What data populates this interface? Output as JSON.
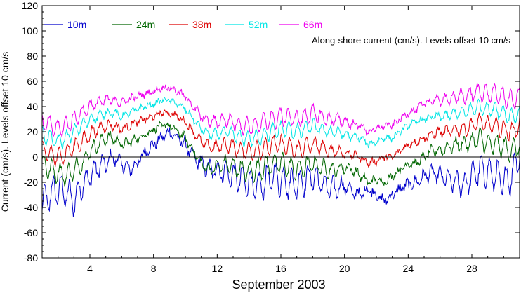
{
  "chart_data": {
    "type": "line",
    "title": "",
    "xlabel": "September 2003",
    "ylabel": "Current (cm/s). Levels offset 10 cm/s",
    "annotation": "Along-shore current (cm/s). Levels offset 10 cm/s",
    "xlim": [
      1,
      31
    ],
    "ylim": [
      -80,
      120
    ],
    "x_ticks": [
      4,
      8,
      12,
      16,
      20,
      24,
      28
    ],
    "y_ticks": [
      -80,
      -60,
      -40,
      -20,
      0,
      20,
      40,
      60,
      80,
      100,
      120
    ],
    "zero_line": true,
    "grid": false,
    "legend_position": "top",
    "series": [
      {
        "name": "10m",
        "color": "#0000cc",
        "offset": 0,
        "x": [
          1,
          1.5,
          2,
          2.5,
          3,
          3.5,
          4,
          4.5,
          5,
          5.5,
          6,
          6.5,
          7,
          7.5,
          8,
          8.5,
          9,
          9.5,
          10,
          10.5,
          11,
          11.5,
          12,
          12.5,
          13,
          13.5,
          14,
          14.5,
          15,
          15.5,
          16,
          16.5,
          17,
          17.5,
          18,
          18.5,
          19,
          19.5,
          20,
          20.5,
          21,
          21.5,
          22,
          22.5,
          23,
          23.5,
          24,
          24.5,
          25,
          25.5,
          26,
          26.5,
          27,
          27.5,
          28,
          28.5,
          29,
          29.5,
          30,
          30.5,
          31
        ],
        "y": [
          -38,
          -30,
          -25,
          -28,
          -35,
          -22,
          -15,
          -8,
          -5,
          0,
          -5,
          -10,
          -5,
          5,
          10,
          15,
          20,
          15,
          10,
          0,
          -5,
          -10,
          -10,
          -12,
          -15,
          -18,
          -20,
          -25,
          -20,
          -15,
          -18,
          -20,
          -22,
          -18,
          -15,
          -20,
          -25,
          -25,
          -22,
          -28,
          -30,
          -25,
          -30,
          -35,
          -30,
          -25,
          -22,
          -20,
          -15,
          -12,
          -15,
          -18,
          -20,
          -22,
          -15,
          -10,
          -12,
          -15,
          -20,
          -15,
          5
        ]
      },
      {
        "name": "24m",
        "color": "#006600",
        "offset": 10,
        "x": [
          1,
          1.5,
          2,
          2.5,
          3,
          3.5,
          4,
          4.5,
          5,
          5.5,
          6,
          6.5,
          7,
          7.5,
          8,
          8.5,
          9,
          9.5,
          10,
          10.5,
          11,
          11.5,
          12,
          12.5,
          13,
          13.5,
          14,
          14.5,
          15,
          15.5,
          16,
          16.5,
          17,
          17.5,
          18,
          18.5,
          19,
          19.5,
          20,
          20.5,
          21,
          21.5,
          22,
          22.5,
          23,
          23.5,
          24,
          24.5,
          25,
          25.5,
          26,
          26.5,
          27,
          27.5,
          28,
          28.5,
          29,
          29.5,
          30,
          30.5,
          31
        ],
        "y": [
          -5,
          -10,
          -12,
          -15,
          -10,
          -5,
          5,
          10,
          15,
          15,
          10,
          12,
          15,
          18,
          22,
          25,
          25,
          20,
          15,
          5,
          -5,
          -10,
          -8,
          -5,
          -8,
          -10,
          -12,
          -10,
          -8,
          -5,
          -5,
          -8,
          -10,
          -8,
          -5,
          -8,
          -10,
          -10,
          -8,
          -10,
          -15,
          -20,
          -18,
          -20,
          -15,
          -10,
          -5,
          -5,
          0,
          5,
          5,
          8,
          10,
          10,
          12,
          15,
          10,
          10,
          8,
          5,
          10
        ]
      },
      {
        "name": "38m",
        "color": "#dd0000",
        "offset": 20,
        "x": [
          1,
          1.5,
          2,
          2.5,
          3,
          3.5,
          4,
          4.5,
          5,
          5.5,
          6,
          6.5,
          7,
          7.5,
          8,
          8.5,
          9,
          9.5,
          10,
          10.5,
          11,
          11.5,
          12,
          12.5,
          13,
          13.5,
          14,
          14.5,
          15,
          15.5,
          16,
          16.5,
          17,
          17.5,
          18,
          18.5,
          19,
          19.5,
          20,
          20.5,
          21,
          21.5,
          22,
          22.5,
          23,
          23.5,
          24,
          24.5,
          25,
          25.5,
          26,
          26.5,
          27,
          27.5,
          28,
          28.5,
          29,
          29.5,
          30,
          30.5,
          31
        ],
        "y": [
          5,
          2,
          0,
          3,
          8,
          12,
          18,
          22,
          25,
          25,
          22,
          25,
          28,
          30,
          32,
          35,
          35,
          32,
          28,
          20,
          12,
          8,
          8,
          10,
          8,
          5,
          5,
          5,
          8,
          10,
          10,
          8,
          5,
          8,
          10,
          8,
          5,
          5,
          3,
          2,
          0,
          -5,
          -3,
          0,
          0,
          5,
          10,
          12,
          15,
          18,
          20,
          20,
          22,
          22,
          25,
          28,
          25,
          25,
          22,
          20,
          25
        ]
      },
      {
        "name": "52m",
        "color": "#00e5e5",
        "offset": 30,
        "x": [
          1,
          1.5,
          2,
          2.5,
          3,
          3.5,
          4,
          4.5,
          5,
          5.5,
          6,
          6.5,
          7,
          7.5,
          8,
          8.5,
          9,
          9.5,
          10,
          10.5,
          11,
          11.5,
          12,
          12.5,
          13,
          13.5,
          14,
          14.5,
          15,
          15.5,
          16,
          16.5,
          17,
          17.5,
          18,
          18.5,
          19,
          19.5,
          20,
          20.5,
          21,
          21.5,
          22,
          22.5,
          23,
          23.5,
          24,
          24.5,
          25,
          25.5,
          26,
          26.5,
          27,
          27.5,
          28,
          28.5,
          29,
          29.5,
          30,
          30.5,
          31
        ],
        "y": [
          18,
          15,
          12,
          15,
          20,
          25,
          30,
          32,
          35,
          35,
          32,
          35,
          38,
          40,
          42,
          45,
          45,
          42,
          38,
          30,
          22,
          18,
          18,
          20,
          18,
          15,
          15,
          15,
          18,
          20,
          22,
          22,
          20,
          22,
          25,
          22,
          20,
          20,
          18,
          16,
          15,
          10,
          12,
          15,
          15,
          20,
          25,
          28,
          30,
          32,
          32,
          33,
          35,
          35,
          38,
          40,
          38,
          38,
          35,
          32,
          35
        ]
      },
      {
        "name": "66m",
        "color": "#ee00ee",
        "offset": 40,
        "x": [
          1,
          1.5,
          2,
          2.5,
          3,
          3.5,
          4,
          4.5,
          5,
          5.5,
          6,
          6.5,
          7,
          7.5,
          8,
          8.5,
          9,
          9.5,
          10,
          10.5,
          11,
          11.5,
          12,
          12.5,
          13,
          13.5,
          14,
          14.5,
          15,
          15.5,
          16,
          16.5,
          17,
          17.5,
          18,
          18.5,
          19,
          19.5,
          20,
          20.5,
          21,
          21.5,
          22,
          22.5,
          23,
          23.5,
          24,
          24.5,
          25,
          25.5,
          26,
          26.5,
          27,
          27.5,
          28,
          28.5,
          29,
          29.5,
          30,
          30.5,
          31
        ],
        "y": [
          28,
          25,
          22,
          25,
          30,
          35,
          40,
          43,
          45,
          45,
          43,
          46,
          48,
          50,
          52,
          55,
          55,
          52,
          48,
          40,
          32,
          28,
          28,
          30,
          28,
          25,
          25,
          25,
          28,
          30,
          32,
          32,
          30,
          32,
          35,
          32,
          30,
          30,
          28,
          26,
          25,
          20,
          22,
          25,
          25,
          30,
          35,
          38,
          42,
          45,
          45,
          46,
          48,
          48,
          50,
          52,
          50,
          50,
          48,
          45,
          48
        ]
      }
    ]
  }
}
